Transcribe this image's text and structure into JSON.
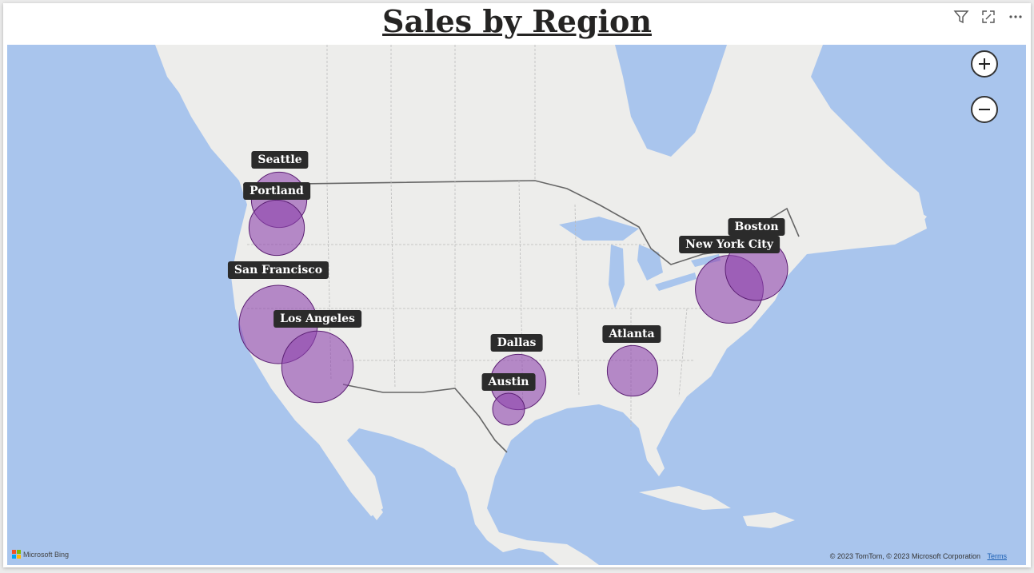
{
  "title": "Sales by Region",
  "toolbar": {
    "icons": [
      "filter-icon",
      "focus-mode-icon",
      "more-options-icon"
    ]
  },
  "map": {
    "zoom_in_icon": "plus-icon",
    "zoom_out_icon": "minus-icon",
    "bubble_color": "#8e44ad",
    "cities": [
      {
        "name": "Seattle",
        "label": "Seattle",
        "size": 3
      },
      {
        "name": "Portland",
        "label": "Portland",
        "size": 3
      },
      {
        "name": "San Francisco",
        "label": "San Francisco",
        "size": 6
      },
      {
        "name": "Los Angeles",
        "label": "Los Angeles",
        "size": 5
      },
      {
        "name": "Dallas",
        "label": "Dallas",
        "size": 3
      },
      {
        "name": "Austin",
        "label": "Austin",
        "size": 1
      },
      {
        "name": "Atlanta",
        "label": "Atlanta",
        "size": 2.5
      },
      {
        "name": "New York City",
        "label": "New York City",
        "size": 4.5
      },
      {
        "name": "Boston",
        "label": "Boston",
        "size": 3.8
      }
    ],
    "attribution": {
      "logo_text": "Microsoft Bing",
      "copyright": "© 2023 TomTom, © 2023 Microsoft Corporation",
      "terms": "Terms"
    }
  }
}
